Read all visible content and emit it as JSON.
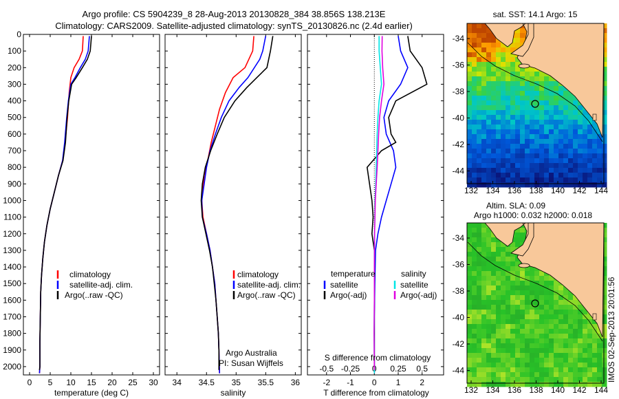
{
  "header": {
    "line1": "Argo profile: CS 5904239_8 28-Aug-2013 20130828_384 38.856S 138.213E",
    "line2": "Climatology: CARS2009. Satellite-adjusted climatology: synTS_20130826.nc (2.4d earlier)"
  },
  "side_stamp": "IMOS 02-Sep-2013 20:01:56",
  "colors": {
    "climatology": "#ff0000",
    "satellite": "#0000ff",
    "argo": "#000000",
    "cyan": "#00e5e5",
    "magenta": "#e000e0",
    "land": "#f8c89a"
  },
  "chart_data": [
    {
      "type": "line",
      "panel": "temperature",
      "xlabel": "temperature (deg C)",
      "x_ticks": [
        0,
        5,
        10,
        15,
        20,
        25,
        30
      ],
      "xlim": [
        -1.5,
        31.5
      ],
      "y_ticks": [
        0,
        100,
        200,
        300,
        400,
        500,
        600,
        700,
        800,
        900,
        1000,
        1100,
        1200,
        1300,
        1400,
        1500,
        1600,
        1700,
        1800,
        1900,
        2000
      ],
      "ylim": [
        2050,
        0
      ],
      "legend": [
        "climatology",
        "satellite-adj. clim.",
        "Argo(..raw -QC)"
      ],
      "legend_position": "middle-right",
      "series": [
        {
          "name": "climatology",
          "color": "#ff0000",
          "points": [
            [
              13.0,
              10
            ],
            [
              12.8,
              100
            ],
            [
              12.0,
              150
            ],
            [
              10.8,
              200
            ],
            [
              10.0,
              260
            ],
            [
              9.6,
              350
            ],
            [
              9.2,
              500
            ],
            [
              8.6,
              650
            ],
            [
              8.0,
              760
            ],
            [
              7.0,
              850
            ],
            [
              6.0,
              950
            ],
            [
              5.0,
              1050
            ],
            [
              4.2,
              1150
            ],
            [
              3.6,
              1250
            ],
            [
              3.2,
              1350
            ],
            [
              2.9,
              1450
            ],
            [
              2.7,
              1550
            ],
            [
              2.6,
              1700
            ],
            [
              2.5,
              1850
            ],
            [
              2.5,
              2000
            ],
            [
              2.4,
              2040
            ]
          ]
        },
        {
          "name": "satellite-adj. clim.",
          "color": "#0000ff",
          "points": [
            [
              14.5,
              10
            ],
            [
              14.2,
              100
            ],
            [
              13.5,
              150
            ],
            [
              12.3,
              200
            ],
            [
              11.0,
              260
            ],
            [
              10.0,
              300
            ],
            [
              9.4,
              400
            ],
            [
              9.0,
              500
            ],
            [
              8.5,
              650
            ],
            [
              8.0,
              760
            ],
            [
              7.0,
              850
            ],
            [
              6.0,
              950
            ],
            [
              5.0,
              1050
            ],
            [
              4.2,
              1150
            ],
            [
              3.6,
              1250
            ],
            [
              3.2,
              1350
            ],
            [
              2.9,
              1450
            ],
            [
              2.7,
              1550
            ],
            [
              2.6,
              1700
            ],
            [
              2.5,
              1850
            ],
            [
              2.5,
              2000
            ],
            [
              2.4,
              2040
            ]
          ]
        },
        {
          "name": "Argo(..raw -QC)",
          "color": "#000000",
          "points": [
            [
              15.0,
              10
            ],
            [
              14.7,
              100
            ],
            [
              14.0,
              150
            ],
            [
              12.8,
              200
            ],
            [
              11.3,
              260
            ],
            [
              10.2,
              300
            ],
            [
              9.5,
              400
            ],
            [
              9.1,
              500
            ],
            [
              8.7,
              650
            ],
            [
              8.1,
              760
            ],
            [
              7.0,
              850
            ],
            [
              6.0,
              950
            ],
            [
              5.0,
              1050
            ],
            [
              4.2,
              1150
            ],
            [
              3.6,
              1250
            ],
            [
              3.2,
              1350
            ],
            [
              2.9,
              1450
            ],
            [
              2.7,
              1550
            ],
            [
              2.6,
              1700
            ],
            [
              2.5,
              1850
            ],
            [
              2.5,
              2000
            ],
            [
              2.4,
              2020
            ]
          ]
        }
      ]
    },
    {
      "type": "line",
      "panel": "salinity",
      "xlabel": "salinity",
      "x_ticks": [
        34,
        34.5,
        35,
        35.5,
        36
      ],
      "xlim": [
        33.8,
        36.1
      ],
      "ylim": [
        2050,
        0
      ],
      "legend": [
        "climatology",
        "satellite-adj. clim.",
        "Argo(..raw -QC)"
      ],
      "legend_position": "middle-right",
      "annotation": [
        "Argo Australia",
        "PI: Susan Wijffels"
      ],
      "series": [
        {
          "name": "climatology",
          "color": "#ff0000",
          "points": [
            [
              35.3,
              10
            ],
            [
              35.28,
              100
            ],
            [
              35.15,
              200
            ],
            [
              34.95,
              260
            ],
            [
              34.82,
              350
            ],
            [
              34.72,
              450
            ],
            [
              34.65,
              550
            ],
            [
              34.58,
              650
            ],
            [
              34.52,
              760
            ],
            [
              34.46,
              850
            ],
            [
              34.42,
              1000
            ],
            [
              34.44,
              1100
            ],
            [
              34.5,
              1200
            ],
            [
              34.56,
              1300
            ],
            [
              34.6,
              1400
            ],
            [
              34.64,
              1500
            ],
            [
              34.66,
              1600
            ],
            [
              34.68,
              1700
            ],
            [
              34.7,
              1800
            ],
            [
              34.71,
              1900
            ],
            [
              34.72,
              2040
            ]
          ]
        },
        {
          "name": "satellite-adj. clim.",
          "color": "#0000ff",
          "points": [
            [
              35.5,
              10
            ],
            [
              35.45,
              100
            ],
            [
              35.4,
              150
            ],
            [
              35.2,
              260
            ],
            [
              35.05,
              320
            ],
            [
              34.88,
              400
            ],
            [
              34.75,
              500
            ],
            [
              34.65,
              600
            ],
            [
              34.56,
              700
            ],
            [
              34.5,
              800
            ],
            [
              34.42,
              1000
            ],
            [
              34.43,
              1100
            ],
            [
              34.5,
              1200
            ],
            [
              34.56,
              1300
            ],
            [
              34.6,
              1400
            ],
            [
              34.64,
              1500
            ],
            [
              34.66,
              1600
            ],
            [
              34.68,
              1700
            ],
            [
              34.7,
              1800
            ],
            [
              34.71,
              1900
            ],
            [
              34.72,
              2040
            ]
          ]
        },
        {
          "name": "Argo(..raw -QC)",
          "color": "#000000",
          "points": [
            [
              35.62,
              10
            ],
            [
              35.58,
              100
            ],
            [
              35.52,
              200
            ],
            [
              35.35,
              260
            ],
            [
              35.18,
              320
            ],
            [
              34.98,
              400
            ],
            [
              34.8,
              500
            ],
            [
              34.68,
              600
            ],
            [
              34.57,
              700
            ],
            [
              34.48,
              800
            ],
            [
              34.43,
              900
            ],
            [
              34.41,
              1000
            ],
            [
              34.43,
              1100
            ],
            [
              34.49,
              1200
            ],
            [
              34.55,
              1300
            ],
            [
              34.6,
              1400
            ],
            [
              34.63,
              1500
            ],
            [
              34.66,
              1600
            ],
            [
              34.68,
              1700
            ],
            [
              34.7,
              1800
            ],
            [
              34.71,
              1900
            ],
            [
              34.71,
              2020
            ]
          ]
        }
      ]
    },
    {
      "type": "line",
      "panel": "difference",
      "xlabel": "T difference from climatology",
      "xlabel_top": "S difference from climatology",
      "x_ticks": [
        -2,
        -1,
        0,
        1,
        2
      ],
      "x_ticks_top": [
        "-0.5",
        "-0.25",
        "0",
        "0.25",
        "0.5"
      ],
      "xlim": [
        -2.8,
        2.9
      ],
      "ylim": [
        2050,
        0
      ],
      "legend": [
        "temperature",
        "satellite",
        "Argo(-adj)",
        "salinity",
        "satellite",
        "Argo(-adj)"
      ],
      "legend_position": "middle",
      "series": [
        {
          "name": "temperature satellite",
          "color": "#0000ff",
          "points": [
            [
              1.0,
              10
            ],
            [
              1.1,
              100
            ],
            [
              1.4,
              200
            ],
            [
              1.1,
              300
            ],
            [
              0.6,
              400
            ],
            [
              0.4,
              500
            ],
            [
              0.5,
              600
            ],
            [
              0.8,
              700
            ],
            [
              0.9,
              800
            ],
            [
              0.7,
              900
            ],
            [
              0.5,
              1000
            ],
            [
              0.3,
              1100
            ],
            [
              0.15,
              1200
            ],
            [
              0.05,
              1300
            ],
            [
              0.02,
              1500
            ],
            [
              0,
              1700
            ],
            [
              0,
              1900
            ],
            [
              0,
              2040
            ]
          ]
        },
        {
          "name": "temperature Argo(-adj)",
          "color": "#000000",
          "points": [
            [
              1.4,
              10
            ],
            [
              1.5,
              100
            ],
            [
              2.0,
              200
            ],
            [
              2.2,
              300
            ],
            [
              0.9,
              400
            ],
            [
              0.6,
              500
            ],
            [
              0.7,
              600
            ],
            [
              0.9,
              650
            ],
            [
              0.3,
              700
            ],
            [
              -0.3,
              800
            ],
            [
              -0.2,
              900
            ],
            [
              -0.1,
              1000
            ],
            [
              -0.05,
              1100
            ],
            [
              -0.1,
              1200
            ],
            [
              0,
              1300
            ],
            [
              0,
              1400
            ],
            [
              0,
              1600
            ],
            [
              0,
              1800
            ],
            [
              0,
              2000
            ],
            [
              0,
              2020
            ]
          ]
        },
        {
          "name": "salinity satellite",
          "color": "#00e5e5",
          "points": [
            [
              0.2,
              10
            ],
            [
              0.2,
              100
            ],
            [
              0.25,
              200
            ],
            [
              0.3,
              300
            ],
            [
              0.2,
              400
            ],
            [
              0.15,
              500
            ],
            [
              0.12,
              600
            ],
            [
              0.1,
              700
            ],
            [
              0.08,
              800
            ],
            [
              0.06,
              900
            ],
            [
              0.03,
              1000
            ],
            [
              0.01,
              1200
            ],
            [
              0,
              1400
            ],
            [
              0,
              1600
            ],
            [
              -0.01,
              1800
            ],
            [
              0,
              2000
            ],
            [
              0,
              2040
            ]
          ]
        },
        {
          "name": "salinity Argo(-adj)",
          "color": "#e000e0",
          "points": [
            [
              0.33,
              10
            ],
            [
              0.32,
              100
            ],
            [
              0.35,
              200
            ],
            [
              0.4,
              300
            ],
            [
              0.3,
              400
            ],
            [
              0.22,
              500
            ],
            [
              0.18,
              600
            ],
            [
              0.15,
              700
            ],
            [
              0.12,
              800
            ],
            [
              0.08,
              900
            ],
            [
              0.04,
              1000
            ],
            [
              0.01,
              1200
            ],
            [
              0,
              1400
            ],
            [
              0,
              1600
            ],
            [
              -0.01,
              1800
            ],
            [
              0,
              2000
            ],
            [
              0,
              2020
            ]
          ]
        }
      ]
    }
  ],
  "maps": [
    {
      "title": "sat. SST: 14.1 Argo: 15",
      "x_ticks": [
        "132",
        "134",
        "136",
        "138",
        "140",
        "142",
        "144"
      ],
      "y_ticks": [
        "-34",
        "-36",
        "-38",
        "-40",
        "-42",
        "-44"
      ],
      "colormap": "sst"
    },
    {
      "title_line1": "Altim. SLA: 0.09",
      "title_line2": "Argo h1000: 0.032 h2000: 0.018",
      "x_ticks": [
        "132",
        "134",
        "136",
        "138",
        "140",
        "142",
        "144"
      ],
      "y_ticks": [
        "-34",
        "-36",
        "-38",
        "-40",
        "-42",
        "-44"
      ],
      "colormap": "sla"
    }
  ]
}
